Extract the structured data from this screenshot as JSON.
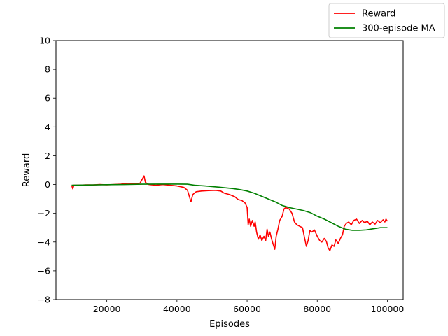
{
  "chart_data": {
    "type": "line",
    "xlabel": "Episodes",
    "ylabel": "Reward",
    "xlim": [
      5500,
      104500
    ],
    "ylim": [
      -8,
      10
    ],
    "x_ticks": [
      20000,
      40000,
      60000,
      80000,
      100000
    ],
    "x_tick_labels": [
      "20000",
      "40000",
      "60000",
      "80000",
      "100000"
    ],
    "y_ticks": [
      -8,
      -6,
      -4,
      -2,
      0,
      2,
      4,
      6,
      8,
      10
    ],
    "y_tick_labels": [
      "−8",
      "−6",
      "−4",
      "−2",
      "0",
      "2",
      "4",
      "6",
      "8",
      "10"
    ],
    "grid": false,
    "legend_position": "top-right, outside the axes",
    "series": [
      {
        "name": "Reward",
        "color": "#ff0000",
        "points": [
          [
            10000,
            -0.05
          ],
          [
            10300,
            -0.3
          ],
          [
            10600,
            -0.05
          ],
          [
            12000,
            -0.05
          ],
          [
            14000,
            -0.02
          ],
          [
            16000,
            -0.03
          ],
          [
            18000,
            0.0
          ],
          [
            20000,
            -0.02
          ],
          [
            22000,
            0.0
          ],
          [
            24000,
            0.02
          ],
          [
            26000,
            0.08
          ],
          [
            28000,
            0.05
          ],
          [
            29500,
            0.1
          ],
          [
            30600,
            0.6
          ],
          [
            31000,
            0.15
          ],
          [
            32000,
            0.0
          ],
          [
            34000,
            -0.05
          ],
          [
            36000,
            0.0
          ],
          [
            38000,
            -0.05
          ],
          [
            40000,
            -0.1
          ],
          [
            42000,
            -0.2
          ],
          [
            43000,
            -0.4
          ],
          [
            43500,
            -0.8
          ],
          [
            44000,
            -1.2
          ],
          [
            44500,
            -0.7
          ],
          [
            45500,
            -0.5
          ],
          [
            47000,
            -0.45
          ],
          [
            49000,
            -0.42
          ],
          [
            51000,
            -0.4
          ],
          [
            52500,
            -0.45
          ],
          [
            53500,
            -0.6
          ],
          [
            55000,
            -0.7
          ],
          [
            56500,
            -0.85
          ],
          [
            57500,
            -1.05
          ],
          [
            58500,
            -1.1
          ],
          [
            59500,
            -1.3
          ],
          [
            60000,
            -1.6
          ],
          [
            60300,
            -2.8
          ],
          [
            60600,
            -2.4
          ],
          [
            61000,
            -2.9
          ],
          [
            61500,
            -2.5
          ],
          [
            62000,
            -2.9
          ],
          [
            62300,
            -2.6
          ],
          [
            62700,
            -3.3
          ],
          [
            63200,
            -3.8
          ],
          [
            63700,
            -3.5
          ],
          [
            64200,
            -3.9
          ],
          [
            64800,
            -3.6
          ],
          [
            65300,
            -3.9
          ],
          [
            65700,
            -3.1
          ],
          [
            66100,
            -3.6
          ],
          [
            66500,
            -3.3
          ],
          [
            67000,
            -3.8
          ],
          [
            67500,
            -4.2
          ],
          [
            67900,
            -4.5
          ],
          [
            68300,
            -3.6
          ],
          [
            68800,
            -3.1
          ],
          [
            69300,
            -2.5
          ],
          [
            70000,
            -2.2
          ],
          [
            70500,
            -1.7
          ],
          [
            71000,
            -1.6
          ],
          [
            72000,
            -1.7
          ],
          [
            72800,
            -2.0
          ],
          [
            73500,
            -2.6
          ],
          [
            74200,
            -2.8
          ],
          [
            75000,
            -2.9
          ],
          [
            75800,
            -3.0
          ],
          [
            76300,
            -3.6
          ],
          [
            76900,
            -4.3
          ],
          [
            77400,
            -3.9
          ],
          [
            77900,
            -3.2
          ],
          [
            78500,
            -3.3
          ],
          [
            79200,
            -3.15
          ],
          [
            80000,
            -3.6
          ],
          [
            80700,
            -3.9
          ],
          [
            81300,
            -4.0
          ],
          [
            82000,
            -3.75
          ],
          [
            82600,
            -3.95
          ],
          [
            83100,
            -4.4
          ],
          [
            83600,
            -4.6
          ],
          [
            84200,
            -4.2
          ],
          [
            84800,
            -4.3
          ],
          [
            85300,
            -3.85
          ],
          [
            86000,
            -4.1
          ],
          [
            86700,
            -3.7
          ],
          [
            87200,
            -3.5
          ],
          [
            87700,
            -2.9
          ],
          [
            88300,
            -2.7
          ],
          [
            89000,
            -2.6
          ],
          [
            89700,
            -2.8
          ],
          [
            90400,
            -2.5
          ],
          [
            91200,
            -2.4
          ],
          [
            92000,
            -2.7
          ],
          [
            92800,
            -2.5
          ],
          [
            93500,
            -2.65
          ],
          [
            94300,
            -2.55
          ],
          [
            95000,
            -2.8
          ],
          [
            95700,
            -2.6
          ],
          [
            96500,
            -2.75
          ],
          [
            97200,
            -2.5
          ],
          [
            98000,
            -2.65
          ],
          [
            98800,
            -2.45
          ],
          [
            99300,
            -2.6
          ],
          [
            99600,
            -2.4
          ],
          [
            100000,
            -2.55
          ]
        ]
      },
      {
        "name": "300-episode MA",
        "color": "#008000",
        "points": [
          [
            10000,
            -0.05
          ],
          [
            15000,
            -0.03
          ],
          [
            20000,
            -0.01
          ],
          [
            25000,
            0.0
          ],
          [
            30000,
            0.02
          ],
          [
            35000,
            0.03
          ],
          [
            40000,
            0.03
          ],
          [
            43000,
            0.02
          ],
          [
            45000,
            -0.05
          ],
          [
            48000,
            -0.1
          ],
          [
            52000,
            -0.18
          ],
          [
            56000,
            -0.28
          ],
          [
            58000,
            -0.35
          ],
          [
            60000,
            -0.45
          ],
          [
            62000,
            -0.6
          ],
          [
            64000,
            -0.8
          ],
          [
            66000,
            -1.0
          ],
          [
            68000,
            -1.2
          ],
          [
            70000,
            -1.45
          ],
          [
            72000,
            -1.6
          ],
          [
            74000,
            -1.7
          ],
          [
            76000,
            -1.8
          ],
          [
            78000,
            -1.95
          ],
          [
            80000,
            -2.2
          ],
          [
            82000,
            -2.4
          ],
          [
            84000,
            -2.65
          ],
          [
            86000,
            -2.9
          ],
          [
            88000,
            -3.1
          ],
          [
            90000,
            -3.18
          ],
          [
            92000,
            -3.18
          ],
          [
            94000,
            -3.15
          ],
          [
            96000,
            -3.07
          ],
          [
            98000,
            -3.0
          ],
          [
            100000,
            -3.0
          ]
        ]
      }
    ]
  }
}
